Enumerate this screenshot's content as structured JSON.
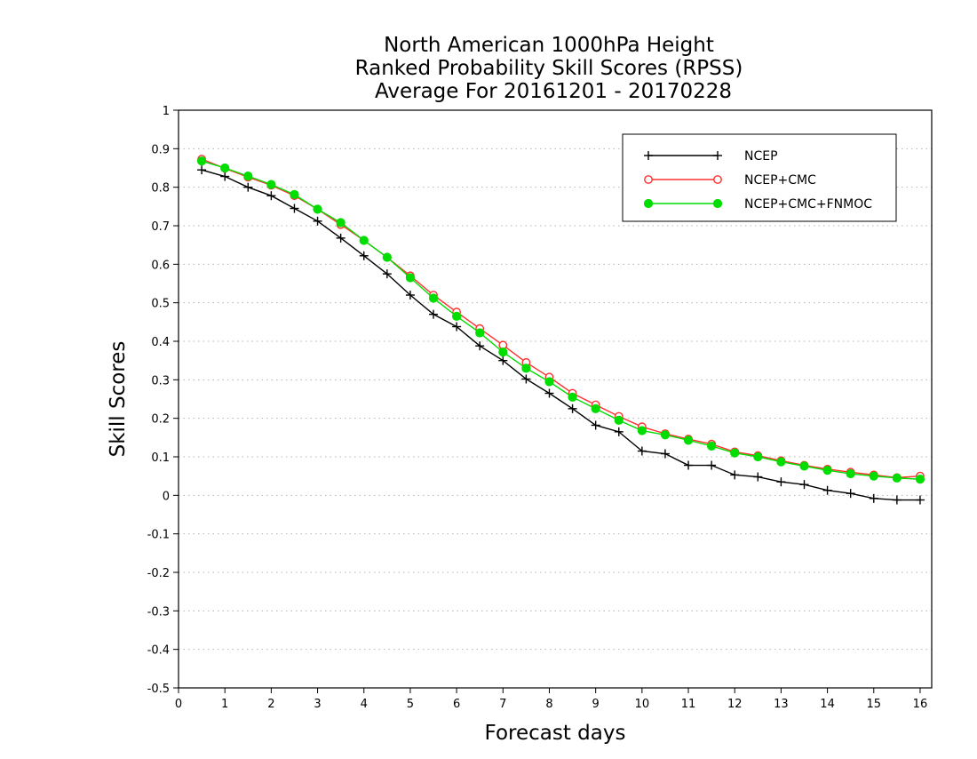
{
  "chart_data": {
    "type": "line",
    "title_lines": [
      "North American 1000hPa Height",
      "Ranked Probability Skill Scores (RPSS)",
      "Average For 20161201 - 20170228"
    ],
    "xlabel": "Forecast days",
    "ylabel": "Skill Scores",
    "xlim": [
      0,
      16.25
    ],
    "ylim": [
      -0.5,
      1
    ],
    "xticks": [
      0,
      1,
      2,
      3,
      4,
      5,
      6,
      7,
      8,
      9,
      10,
      11,
      12,
      13,
      14,
      15,
      16
    ],
    "xtick_labels": [
      "0",
      "1",
      "2",
      "3",
      "4",
      "5",
      "6",
      "7",
      "8",
      "9",
      "10",
      "11",
      "12",
      "13",
      "14",
      "15",
      "16"
    ],
    "yticks": [
      -0.5,
      -0.4,
      -0.3,
      -0.2,
      -0.1,
      0,
      0.1,
      0.2,
      0.3,
      0.4,
      0.5,
      0.6,
      0.7,
      0.8,
      0.9,
      1
    ],
    "ytick_labels": [
      "-0.5",
      "-0.4",
      "-0.3",
      "-0.2",
      "-0.1",
      "0",
      "0.1",
      "0.2",
      "0.3",
      "0.4",
      "0.5",
      "0.6",
      "0.7",
      "0.8",
      "0.9",
      "1"
    ],
    "grid": "horizontal dotted",
    "legend_position": "top-right",
    "x": [
      0.5,
      1,
      1.5,
      2,
      2.5,
      3,
      3.5,
      4,
      4.5,
      5,
      5.5,
      6,
      6.5,
      7,
      7.5,
      8,
      8.5,
      9,
      9.5,
      10,
      10.5,
      11,
      11.5,
      12,
      12.5,
      13,
      13.5,
      14,
      14.5,
      15,
      15.5,
      16
    ],
    "series": [
      {
        "name": "NCEP",
        "color": "#000000",
        "marker": "plus",
        "values": [
          0.845,
          0.828,
          0.8,
          0.778,
          0.745,
          0.712,
          0.668,
          0.622,
          0.575,
          0.52,
          0.47,
          0.438,
          0.388,
          0.35,
          0.302,
          0.265,
          0.225,
          0.182,
          0.165,
          0.115,
          0.108,
          0.078,
          0.078,
          0.053,
          0.048,
          0.035,
          0.028,
          0.013,
          0.005,
          -0.008,
          -0.012,
          -0.012
        ]
      },
      {
        "name": "NCEP+CMC",
        "color": "#ff3030",
        "marker": "open-circle",
        "values": [
          0.873,
          0.849,
          0.826,
          0.805,
          0.778,
          0.743,
          0.703,
          0.662,
          0.618,
          0.57,
          0.52,
          0.476,
          0.433,
          0.39,
          0.345,
          0.307,
          0.265,
          0.235,
          0.205,
          0.178,
          0.16,
          0.146,
          0.133,
          0.113,
          0.103,
          0.09,
          0.078,
          0.068,
          0.06,
          0.053,
          0.046,
          0.05
        ]
      },
      {
        "name": "NCEP+CMC+FNMOC",
        "color": "#00dd00",
        "marker": "filled-circle",
        "values": [
          0.868,
          0.85,
          0.829,
          0.807,
          0.781,
          0.743,
          0.708,
          0.662,
          0.618,
          0.565,
          0.512,
          0.465,
          0.422,
          0.372,
          0.33,
          0.295,
          0.255,
          0.225,
          0.195,
          0.168,
          0.157,
          0.143,
          0.128,
          0.11,
          0.1,
          0.087,
          0.076,
          0.065,
          0.056,
          0.05,
          0.045,
          0.042
        ]
      }
    ]
  }
}
